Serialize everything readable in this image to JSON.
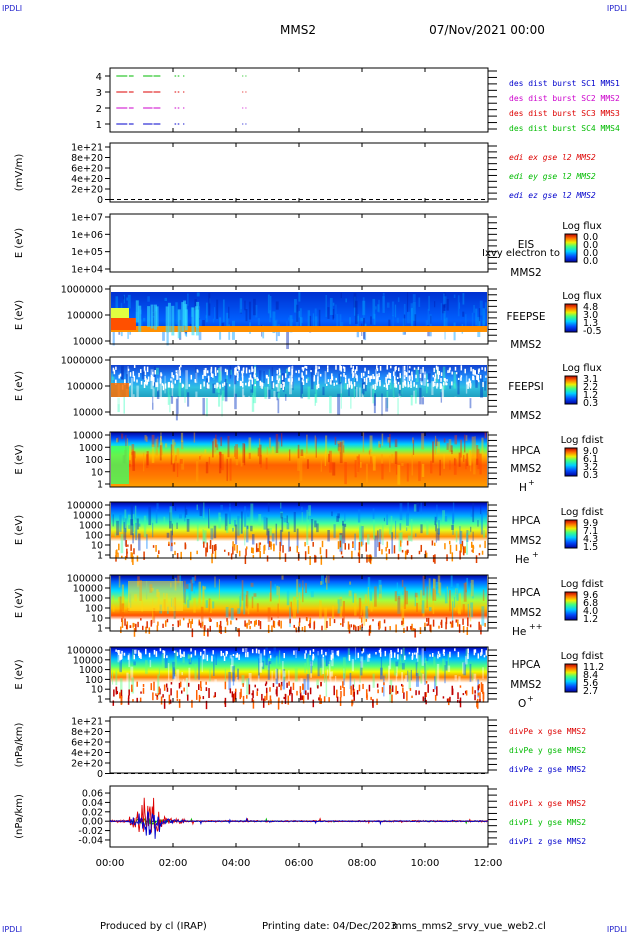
{
  "corner_labels": [
    "IPDLI",
    "IPDLI",
    "IPDLI",
    "IPDLI"
  ],
  "header": {
    "spacecraft": "MMS2",
    "datetime": "07/Nov/2021 00:00"
  },
  "footer": {
    "produced": "Produced by cl (IRAP)",
    "printing": "Printing date: 04/Dec/2023",
    "file": "mms_mms2_srvy_vue_web2.cl"
  },
  "colors": {
    "green": "#00bb00",
    "red": "#dd0000",
    "blue": "#0000cc",
    "magenta": "#cc00cc",
    "mms1": "#0000cc",
    "mms2": "#cc00cc",
    "mms3": "#dd0000",
    "mms4": "#00bb00"
  },
  "chart_data": [
    {
      "type": "line",
      "panel": "burst",
      "y_ticks": [
        "4",
        "3",
        "2",
        "1"
      ],
      "legend": [
        {
          "text": "des dist burst SC1 MMS1",
          "color": "#0000cc"
        },
        {
          "text": "des dist burst SC2 MMS2",
          "color": "#cc00cc"
        },
        {
          "text": "des dist burst SC3 MMS3",
          "color": "#dd0000"
        },
        {
          "text": "des dist burst SC4 MMS4",
          "color": "#00bb00"
        }
      ],
      "series": [
        {
          "level": 4,
          "color": "#00bb00",
          "intervals": [
            [
              0.2,
              0.55
            ],
            [
              0.6,
              0.75
            ],
            [
              1.05,
              1.35
            ],
            [
              1.38,
              1.6
            ],
            [
              2.05,
              2.1
            ],
            [
              2.15,
              2.2
            ],
            [
              2.32,
              2.36
            ],
            [
              4.2,
              4.23
            ],
            [
              4.3,
              4.33
            ]
          ]
        },
        {
          "level": 3,
          "color": "#dd0000",
          "intervals": [
            [
              0.2,
              0.55
            ],
            [
              0.6,
              0.75
            ],
            [
              1.05,
              1.35
            ],
            [
              1.38,
              1.6
            ],
            [
              2.05,
              2.1
            ],
            [
              2.15,
              2.2
            ],
            [
              2.32,
              2.36
            ],
            [
              4.2,
              4.23
            ],
            [
              4.3,
              4.33
            ]
          ]
        },
        {
          "level": 2,
          "color": "#cc00cc",
          "intervals": [
            [
              0.2,
              0.55
            ],
            [
              0.6,
              0.75
            ],
            [
              1.05,
              1.35
            ],
            [
              1.38,
              1.6
            ],
            [
              2.05,
              2.1
            ],
            [
              2.15,
              2.2
            ],
            [
              2.32,
              2.36
            ],
            [
              4.2,
              4.23
            ],
            [
              4.3,
              4.33
            ]
          ]
        },
        {
          "level": 1,
          "color": "#0000cc",
          "intervals": [
            [
              0.2,
              0.55
            ],
            [
              0.6,
              0.75
            ],
            [
              1.05,
              1.35
            ],
            [
              1.38,
              1.6
            ],
            [
              2.05,
              2.1
            ],
            [
              2.15,
              2.2
            ],
            [
              2.32,
              2.36
            ],
            [
              4.2,
              4.23
            ],
            [
              4.3,
              4.33
            ]
          ]
        }
      ]
    },
    {
      "type": "line",
      "panel": "edi",
      "ylabel": "(mV/m)",
      "y_ticks": [
        "1e+21",
        "8e+20",
        "6e+20",
        "4e+20",
        "2e+20",
        "0"
      ],
      "legend": [
        {
          "text": "edi ex gse l2 MMS2",
          "color": "#dd0000"
        },
        {
          "text": "edi ey gse l2 MMS2",
          "color": "#00bb00"
        },
        {
          "text": "edi ez gse l2 MMS2",
          "color": "#0000cc"
        }
      ]
    },
    {
      "type": "heatmap",
      "panel": "eis",
      "ylabel": "E (eV)",
      "y_ticks": [
        "1e+07",
        "1e+06",
        "1e+05",
        "1e+04"
      ],
      "label": [
        "EIS",
        "MMS2"
      ],
      "overlay_text": "Ixvy electron to",
      "colorbar": {
        "title": "Log flux",
        "ticks": [
          "0.0",
          "0.0",
          "0.0",
          "0.0"
        ]
      }
    },
    {
      "type": "heatmap",
      "panel": "feepse",
      "ylabel": "E (eV)",
      "y_ticks": [
        "1000000",
        "100000",
        "10000"
      ],
      "label": [
        "FEEPSE",
        "MMS2"
      ],
      "colorbar": {
        "title": "Log flux",
        "ticks": [
          "4.8",
          "3.0",
          "1.3",
          "-0.5"
        ]
      }
    },
    {
      "type": "heatmap",
      "panel": "feepsi",
      "ylabel": "E (eV)",
      "y_ticks": [
        "1000000",
        "100000",
        "10000"
      ],
      "label": [
        "FEEPSI",
        "MMS2"
      ],
      "colorbar": {
        "title": "Log flux",
        "ticks": [
          "3.1",
          "2.2",
          "1.2",
          "0.3"
        ]
      }
    },
    {
      "type": "heatmap",
      "panel": "hpca-h",
      "ylabel": "E (eV)",
      "y_ticks": [
        "10000",
        "1000",
        "100",
        "10",
        "1"
      ],
      "label": [
        "HPCA",
        "MMS2",
        "H",
        "+"
      ],
      "colorbar": {
        "title": "Log fdist",
        "ticks": [
          "9.0",
          "6.1",
          "3.2",
          "0.3"
        ]
      }
    },
    {
      "type": "heatmap",
      "panel": "hpca-he",
      "ylabel": "E (eV)",
      "y_ticks": [
        "100000",
        "10000",
        "1000",
        "100",
        "10",
        "1"
      ],
      "label": [
        "HPCA",
        "MMS2",
        "He",
        "+"
      ],
      "colorbar": {
        "title": "Log fdist",
        "ticks": [
          "9.9",
          "7.1",
          "4.3",
          "1.5"
        ]
      }
    },
    {
      "type": "heatmap",
      "panel": "hpca-hepp",
      "ylabel": "E (eV)",
      "y_ticks": [
        "100000",
        "10000",
        "1000",
        "100",
        "10",
        "1"
      ],
      "label": [
        "HPCA",
        "MMS2",
        "He",
        "++"
      ],
      "colorbar": {
        "title": "Log fdist",
        "ticks": [
          "9.6",
          "6.8",
          "4.0",
          "1.2"
        ]
      }
    },
    {
      "type": "heatmap",
      "panel": "hpca-o",
      "ylabel": "E (eV)",
      "y_ticks": [
        "100000",
        "10000",
        "1000",
        "100",
        "10",
        "1"
      ],
      "label": [
        "HPCA",
        "MMS2",
        "O",
        "+"
      ],
      "colorbar": {
        "title": "Log fdist",
        "ticks": [
          "11.2",
          "8.4",
          "5.6",
          "2.7"
        ]
      }
    },
    {
      "type": "line",
      "panel": "divpe",
      "ylabel": "(nPa/km)",
      "y_ticks": [
        "1e+21",
        "8e+20",
        "6e+20",
        "4e+20",
        "2e+20",
        "0"
      ],
      "legend": [
        {
          "text": "divPe x gse MMS2",
          "color": "#dd0000"
        },
        {
          "text": "divPe y gse MMS2",
          "color": "#00bb00"
        },
        {
          "text": "divPe z gse MMS2",
          "color": "#0000cc"
        }
      ]
    },
    {
      "type": "line",
      "panel": "divpi",
      "ylabel": "(nPa/km)",
      "y_ticks": [
        "0.06",
        "0.04",
        "0.02",
        "0.00",
        "-0.02",
        "-0.04"
      ],
      "ylim": [
        -0.055,
        0.075
      ],
      "legend": [
        {
          "text": "divPi x gse MMS2",
          "color": "#dd0000"
        },
        {
          "text": "divPi y gse MMS2",
          "color": "#00bb00"
        },
        {
          "text": "divPi z gse MMS2",
          "color": "#0000cc"
        }
      ]
    }
  ],
  "x_axis": {
    "range_hours": [
      0,
      12
    ],
    "tick_hours": [
      0,
      2,
      4,
      6,
      8,
      10,
      12
    ],
    "tick_labels": [
      "00:00",
      "02:00",
      "04:00",
      "06:00",
      "08:00",
      "10:00",
      "12:00"
    ]
  }
}
